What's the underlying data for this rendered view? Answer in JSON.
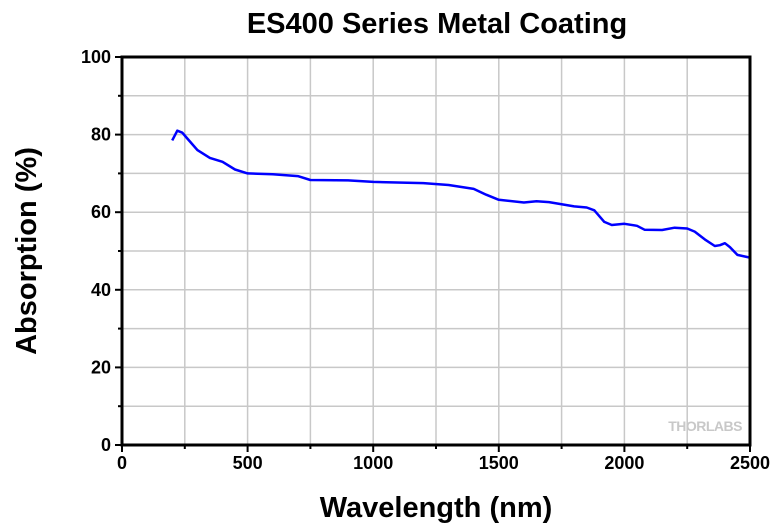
{
  "chart_data": {
    "type": "line",
    "title": "ES400 Series Metal Coating",
    "xlabel": "Wavelength (nm)",
    "ylabel": "Absorption (%)",
    "xlim": [
      0,
      2500
    ],
    "ylim": [
      0,
      100
    ],
    "xticks": [
      "0",
      "500",
      "1000",
      "1500",
      "2000",
      "2500"
    ],
    "yticks": [
      "0",
      "20",
      "40",
      "60",
      "80",
      "100"
    ],
    "grid": true,
    "watermark": "THORLABS",
    "series": [
      {
        "name": "Absorption",
        "color": "#0000ff",
        "x": [
          200,
          220,
          240,
          260,
          300,
          350,
          400,
          450,
          500,
          600,
          700,
          750,
          900,
          1000,
          1200,
          1300,
          1400,
          1450,
          1500,
          1600,
          1650,
          1700,
          1800,
          1850,
          1880,
          1920,
          1950,
          2000,
          2050,
          2080,
          2150,
          2200,
          2250,
          2280,
          2320,
          2360,
          2380,
          2400,
          2420,
          2450,
          2500
        ],
        "y": [
          78.5,
          81,
          80.5,
          79,
          76,
          74,
          73,
          71,
          70,
          69.8,
          69.3,
          68.3,
          68.2,
          67.8,
          67.5,
          67,
          66,
          64.5,
          63.2,
          62.5,
          62.8,
          62.6,
          61.5,
          61.2,
          60.5,
          57.5,
          56.7,
          57,
          56.5,
          55.5,
          55.4,
          56,
          55.8,
          55,
          53,
          51.3,
          51.5,
          52,
          51,
          49,
          48.3
        ]
      }
    ]
  }
}
